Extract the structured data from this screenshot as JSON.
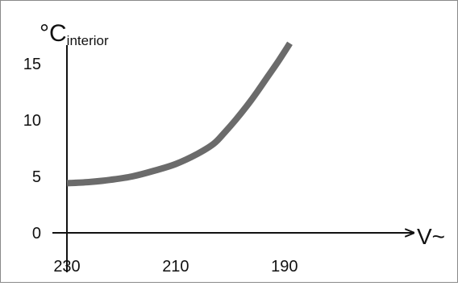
{
  "chart_data": {
    "type": "line",
    "title": "",
    "ylabel": "°C",
    "ylabel_sub": "interior",
    "xlabel": "V~",
    "x_reversed": true,
    "xlim": [
      230,
      187
    ],
    "ylim": [
      0,
      17
    ],
    "x_ticks": [
      "230",
      "210",
      "190"
    ],
    "y_ticks": [
      "0",
      "5",
      "10",
      "15"
    ],
    "grid": false,
    "legend": "none",
    "series": [
      {
        "color": "#6b6b6b",
        "x": [
          230,
          226,
          222,
          218,
          214,
          210,
          206,
          203,
          201,
          199,
          197,
          195,
          193,
          191,
          189
        ],
        "y": [
          4.4,
          4.5,
          4.7,
          5.0,
          5.5,
          6.1,
          7.0,
          7.9,
          8.9,
          10.0,
          11.2,
          12.5,
          13.9,
          15.3,
          16.8
        ]
      }
    ]
  }
}
